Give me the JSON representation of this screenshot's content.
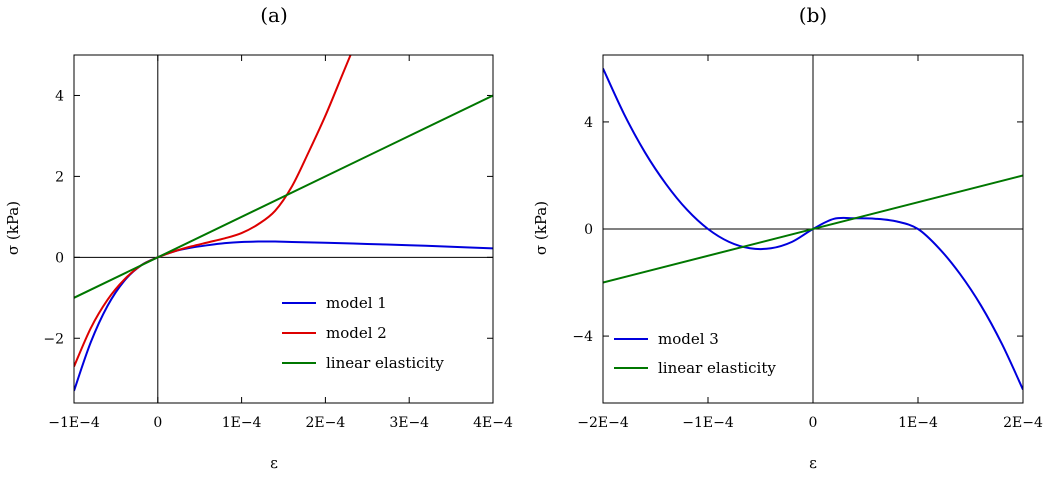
{
  "chart_data": [
    {
      "type": "line",
      "title": "(a)",
      "xlabel": "ε",
      "ylabel": "σ (kPa)",
      "xlim": [
        -0.0001,
        0.0004
      ],
      "ylim": [
        -3.6,
        5.0
      ],
      "xticks": [
        -0.0001,
        0,
        0.0001,
        0.0002,
        0.0003,
        0.0004
      ],
      "xtick_labels": [
        "−1E−4",
        "0",
        "1E−4",
        "2E−4",
        "3E−4",
        "4E−4"
      ],
      "yticks": [
        -2,
        0,
        2,
        4
      ],
      "ytick_labels": [
        "−2",
        "0",
        "2",
        "4"
      ],
      "zero_lines": true,
      "grid": false,
      "legend_position": "bottom-right",
      "series": [
        {
          "name": "model 1",
          "color": "#0000dd",
          "x": [
            -0.0001,
            -8e-05,
            -6e-05,
            -4e-05,
            -2e-05,
            0,
            2e-05,
            4e-05,
            6e-05,
            8e-05,
            0.0001,
            0.00012,
            0.00014,
            0.00016,
            0.0002,
            0.00025,
            0.0003,
            0.00035,
            0.0004
          ],
          "values": [
            -3.3,
            -2.1,
            -1.2,
            -0.58,
            -0.2,
            0,
            0.15,
            0.24,
            0.3,
            0.35,
            0.38,
            0.39,
            0.39,
            0.38,
            0.36,
            0.33,
            0.3,
            0.26,
            0.22
          ]
        },
        {
          "name": "model 2",
          "color": "#dd0000",
          "x": [
            -0.0001,
            -8e-05,
            -6e-05,
            -4e-05,
            -2e-05,
            0,
            2e-05,
            4e-05,
            6e-05,
            8e-05,
            0.0001,
            0.00012,
            0.00014,
            0.00016,
            0.00018,
            0.0002,
            0.00022,
            0.00023
          ],
          "values": [
            -2.7,
            -1.75,
            -1.05,
            -0.55,
            -0.2,
            0,
            0.15,
            0.27,
            0.37,
            0.47,
            0.6,
            0.82,
            1.15,
            1.75,
            2.6,
            3.5,
            4.5,
            5.0
          ]
        },
        {
          "name": "linear elasticity",
          "color": "#007700",
          "x": [
            -0.0001,
            0.0004
          ],
          "values": [
            -1.0,
            4.0
          ]
        }
      ]
    },
    {
      "type": "line",
      "title": "(b)",
      "xlabel": "ε",
      "ylabel": "σ (kPa)",
      "xlim": [
        -0.0002,
        0.0002
      ],
      "ylim": [
        -6.5,
        6.5
      ],
      "xticks": [
        -0.0002,
        -0.0001,
        0,
        0.0001,
        0.0002
      ],
      "xtick_labels": [
        "−2E−4",
        "−1E−4",
        "0",
        "1E−4",
        "2E−4"
      ],
      "yticks": [
        -4,
        0,
        4
      ],
      "ytick_labels": [
        "−4",
        "0",
        "4"
      ],
      "zero_lines": true,
      "grid": false,
      "legend_position": "bottom-left",
      "series": [
        {
          "name": "model 3",
          "color": "#0000dd",
          "x": [
            -0.0002,
            -0.00018,
            -0.00016,
            -0.00014,
            -0.00012,
            -0.0001,
            -8e-05,
            -6e-05,
            -4e-05,
            -2e-05,
            0,
            2e-05,
            4e-05,
            6e-05,
            8e-05,
            0.0001,
            0.00012,
            0.00014,
            0.00016,
            0.00018,
            0.0002
          ],
          "values": [
            6.0,
            4.3,
            2.86,
            1.68,
            0.72,
            0.0,
            -0.48,
            -0.72,
            -0.72,
            -0.48,
            0.0,
            0.38,
            0.4,
            0.38,
            0.28,
            0.0,
            -0.72,
            -1.68,
            -2.86,
            -4.3,
            -6.0
          ]
        },
        {
          "name": "linear elasticity",
          "color": "#007700",
          "x": [
            -0.0002,
            0.0002
          ],
          "values": [
            -2.0,
            2.0
          ]
        }
      ]
    }
  ]
}
